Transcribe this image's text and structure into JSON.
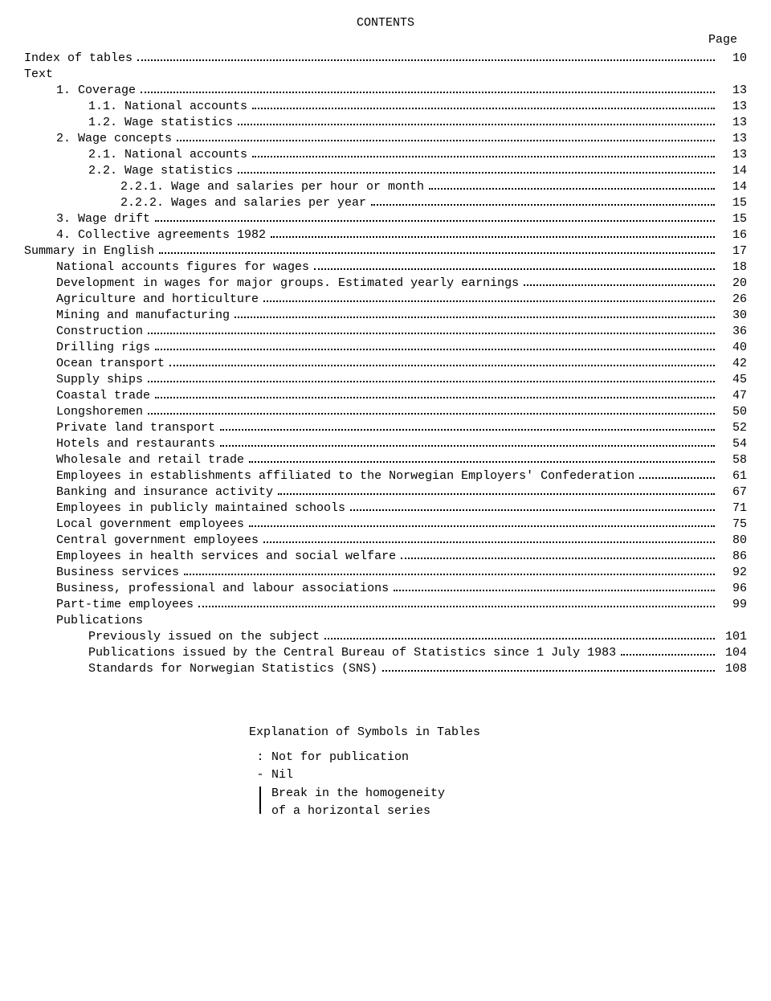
{
  "title": "CONTENTS",
  "page_header": "Page",
  "toc": [
    {
      "indent": 0,
      "label": "Index of tables",
      "page": "10",
      "dots": true
    },
    {
      "indent": 0,
      "label": "Text",
      "page": "",
      "dots": false
    },
    {
      "indent": 1,
      "label": "1.  Coverage",
      "page": "13",
      "dots": true
    },
    {
      "indent": 2,
      "label": "1.1.  National accounts",
      "page": "13",
      "dots": true
    },
    {
      "indent": 2,
      "label": "1.2.  Wage statistics",
      "page": "13",
      "dots": true
    },
    {
      "indent": 1,
      "label": "2.  Wage concepts",
      "page": "13",
      "dots": true
    },
    {
      "indent": 2,
      "label": "2.1.  National accounts",
      "page": "13",
      "dots": true
    },
    {
      "indent": 2,
      "label": "2.2.  Wage statistics",
      "page": "14",
      "dots": true
    },
    {
      "indent": 3,
      "label": "2.2.1.  Wage and salaries per hour or month",
      "page": "14",
      "dots": true
    },
    {
      "indent": 3,
      "label": "2.2.2.  Wages and salaries per year",
      "page": "15",
      "dots": true
    },
    {
      "indent": 1,
      "label": "3.  Wage drift",
      "page": "15",
      "dots": true
    },
    {
      "indent": 1,
      "label": "4.  Collective agreements 1982",
      "page": "16",
      "dots": true
    },
    {
      "indent": 0,
      "label": "Summary in English",
      "page": "17",
      "dots": true
    },
    {
      "indent": 1,
      "label": "National accounts figures for wages",
      "page": "18",
      "dots": true
    },
    {
      "indent": 1,
      "label": "Development in wages for major groups.  Estimated yearly earnings",
      "page": "20",
      "dots": true
    },
    {
      "indent": 1,
      "label": "Agriculture and horticulture",
      "page": "26",
      "dots": true
    },
    {
      "indent": 1,
      "label": "Mining and manufacturing",
      "page": "30",
      "dots": true
    },
    {
      "indent": 1,
      "label": "Construction",
      "page": "36",
      "dots": true
    },
    {
      "indent": 1,
      "label": "Drilling rigs",
      "page": "40",
      "dots": true
    },
    {
      "indent": 1,
      "label": "Ocean transport",
      "page": "42",
      "dots": true
    },
    {
      "indent": 1,
      "label": "Supply ships",
      "page": "45",
      "dots": true
    },
    {
      "indent": 1,
      "label": "Coastal trade",
      "page": "47",
      "dots": true
    },
    {
      "indent": 1,
      "label": "Longshoremen",
      "page": "50",
      "dots": true
    },
    {
      "indent": 1,
      "label": "Private land transport",
      "page": "52",
      "dots": true
    },
    {
      "indent": 1,
      "label": "Hotels and restaurants",
      "page": "54",
      "dots": true
    },
    {
      "indent": 1,
      "label": "Wholesale and retail trade",
      "page": "58",
      "dots": true
    },
    {
      "indent": 1,
      "label": "Employees in establishments affiliated to the Norwegian Employers' Confederation",
      "page": "61",
      "dots": true
    },
    {
      "indent": 1,
      "label": "Banking and insurance activity",
      "page": "67",
      "dots": true
    },
    {
      "indent": 1,
      "label": "Employees in publicly maintained schools",
      "page": "71",
      "dots": true
    },
    {
      "indent": 1,
      "label": "Local government employees",
      "page": "75",
      "dots": true
    },
    {
      "indent": 1,
      "label": "Central government employees",
      "page": "80",
      "dots": true
    },
    {
      "indent": 1,
      "label": "Employees in health services and social welfare",
      "page": "86",
      "dots": true
    },
    {
      "indent": 1,
      "label": "Business services",
      "page": "92",
      "dots": true
    },
    {
      "indent": 1,
      "label": "Business, professional and labour associations",
      "page": "96",
      "dots": true
    },
    {
      "indent": 1,
      "label": "Part-time employees",
      "page": "99",
      "dots": true
    },
    {
      "indent": 1,
      "label": "Publications",
      "page": "",
      "dots": false
    },
    {
      "indent": 2,
      "label": "Previously issued on the subject",
      "page": "101",
      "dots": true
    },
    {
      "indent": 2,
      "label": "Publications issued by the Central Bureau of Statistics since 1 July 1983",
      "page": "104",
      "dots": true
    },
    {
      "indent": 2,
      "label": "Standards for Norwegian Statistics (SNS)",
      "page": "108",
      "dots": true
    }
  ],
  "symbols": {
    "title": "Explanation of Symbols in Tables",
    "rows": [
      {
        "mark": ":",
        "text": "Not for publication"
      },
      {
        "mark": "-",
        "text": "Nil"
      },
      {
        "mark": "|",
        "text": "Break in the homogeneity\nof a horizontal series"
      }
    ]
  }
}
